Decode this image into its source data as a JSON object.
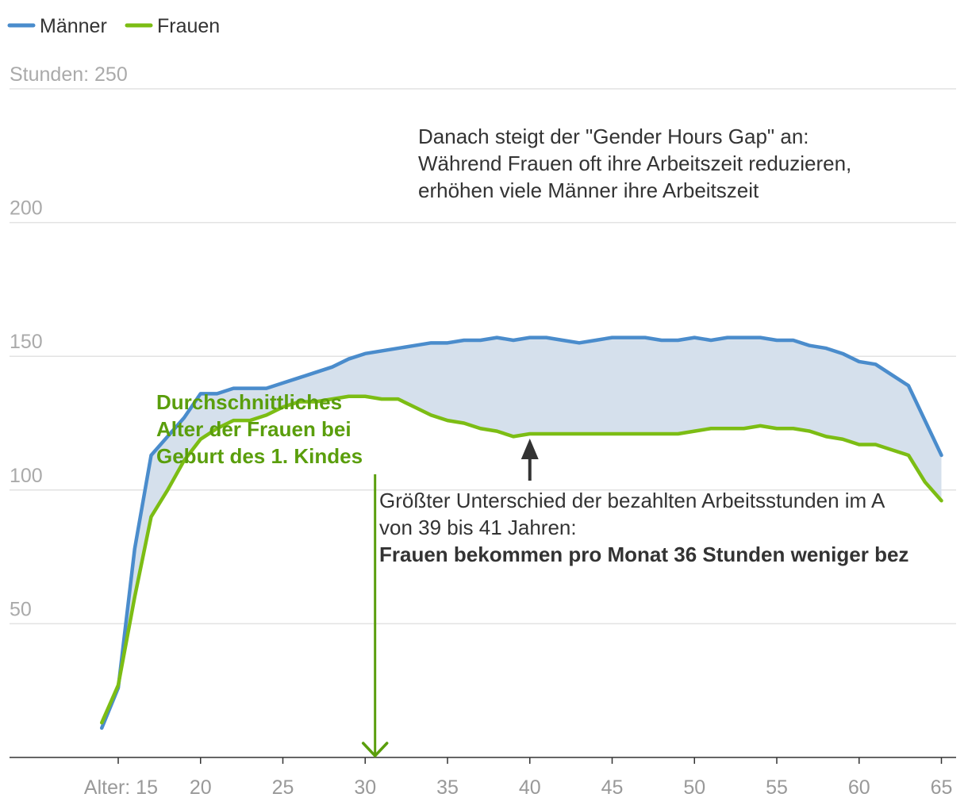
{
  "chart_data": {
    "type": "line",
    "title": "",
    "xlabel": "Alter",
    "ylabel": "Stunden",
    "x_tick_values": [
      15,
      20,
      25,
      30,
      35,
      40,
      45,
      50,
      55,
      60,
      65
    ],
    "x_tick_labels": [
      "Alter: 15",
      "20",
      "25",
      "30",
      "35",
      "40",
      "45",
      "50",
      "55",
      "60",
      "65"
    ],
    "y_tick_values": [
      50,
      100,
      150,
      200,
      250
    ],
    "y_tick_labels": [
      "50",
      "100",
      "150",
      "200",
      "Stunden: 250"
    ],
    "xlim": [
      9,
      66
    ],
    "ylim": [
      0,
      250
    ],
    "gap_fill": "between series",
    "series": [
      {
        "name": "Männer",
        "color": "#4a8ccc",
        "x": [
          14,
          15,
          16,
          17,
          18,
          19,
          20,
          21,
          22,
          23,
          24,
          25,
          26,
          27,
          28,
          29,
          30,
          31,
          32,
          33,
          34,
          35,
          36,
          37,
          38,
          39,
          40,
          41,
          42,
          43,
          44,
          45,
          46,
          47,
          48,
          49,
          50,
          51,
          52,
          53,
          54,
          55,
          56,
          57,
          58,
          59,
          60,
          61,
          62,
          63,
          64,
          65
        ],
        "y": [
          11,
          26,
          78,
          113,
          120,
          127,
          136,
          136,
          138,
          138,
          138,
          140,
          142,
          144,
          146,
          149,
          151,
          152,
          153,
          154,
          155,
          155,
          156,
          156,
          157,
          156,
          157,
          157,
          156,
          155,
          156,
          157,
          157,
          157,
          156,
          156,
          157,
          156,
          157,
          157,
          157,
          156,
          156,
          154,
          153,
          151,
          148,
          147,
          143,
          139,
          126,
          113
        ]
      },
      {
        "name": "Frauen",
        "color": "#7cbd14",
        "x": [
          14,
          15,
          16,
          17,
          18,
          19,
          20,
          21,
          22,
          23,
          24,
          25,
          26,
          27,
          28,
          29,
          30,
          31,
          32,
          33,
          34,
          35,
          36,
          37,
          38,
          39,
          40,
          41,
          42,
          43,
          44,
          45,
          46,
          47,
          48,
          49,
          50,
          51,
          52,
          53,
          54,
          55,
          56,
          57,
          58,
          59,
          60,
          61,
          62,
          63,
          64,
          65
        ],
        "y": [
          13,
          27,
          60,
          90,
          100,
          111,
          119,
          123,
          126,
          126,
          128,
          131,
          133,
          133,
          134,
          135,
          135,
          134,
          134,
          131,
          128,
          126,
          125,
          123,
          122,
          120,
          121,
          121,
          121,
          121,
          121,
          121,
          121,
          121,
          121,
          121,
          122,
          123,
          123,
          123,
          124,
          123,
          123,
          122,
          120,
          119,
          117,
          117,
          115,
          113,
          103,
          96
        ]
      }
    ],
    "annotations": {
      "gap_rise": [
        "Danach steigt der \"Gender Hours Gap\" an:",
        "Während Frauen oft ihre Arbeitszeit reduzieren,",
        "erhöhen viele Männer ihre Arbeitszeit"
      ],
      "largest_gap": [
        "Größter Unterschied der bezahlten Arbeitsstunden im A",
        "von 39 bis 41 Jahren:"
      ],
      "largest_gap_bold": "Frauen bekommen pro Monat 36 Stunden weniger bez",
      "largest_gap_x": 40,
      "first_child": [
        "Durchschnittliches",
        "Alter der Frauen bei",
        "Geburt des 1. Kindes"
      ],
      "first_child_x": 30.6
    }
  }
}
